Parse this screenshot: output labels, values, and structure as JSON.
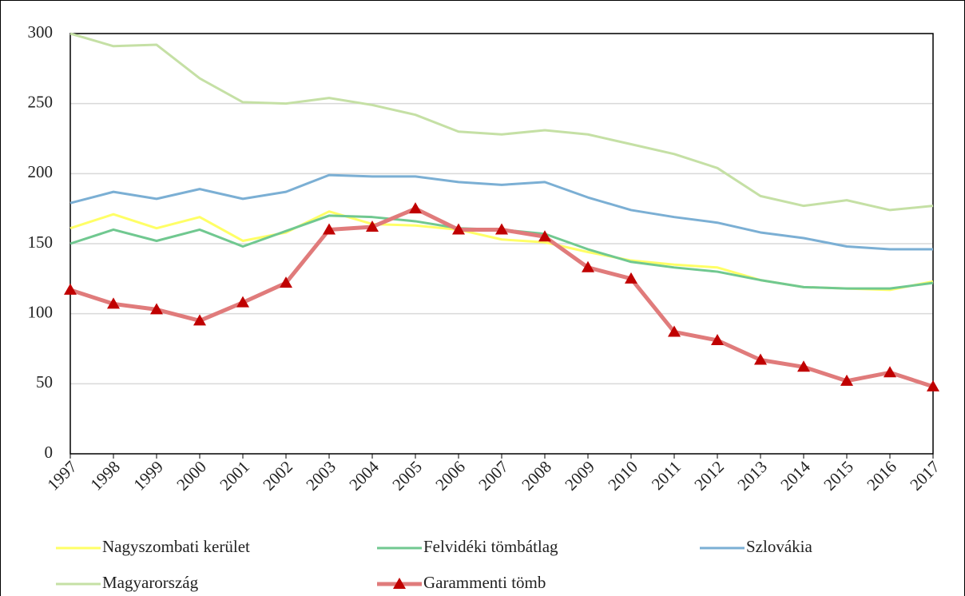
{
  "chart_data": {
    "type": "line",
    "categories": [
      "1997",
      "1998",
      "1999",
      "2000",
      "2001",
      "2002",
      "2003",
      "2004",
      "2005",
      "2006",
      "2007",
      "2008",
      "2009",
      "2010",
      "2011",
      "2012",
      "2013",
      "2014",
      "2015",
      "2016",
      "2017"
    ],
    "series": [
      {
        "name": "Nagyszombati kerület",
        "color": "#ffff66",
        "values": [
          161,
          171,
          161,
          169,
          152,
          158,
          173,
          164,
          163,
          160,
          153,
          151,
          144,
          138,
          135,
          133,
          124,
          119,
          118,
          117,
          123
        ]
      },
      {
        "name": "Felvidéki tömbátlag",
        "color": "#70c890",
        "values": [
          150,
          160,
          152,
          160,
          148,
          159,
          170,
          169,
          166,
          161,
          160,
          157,
          146,
          137,
          133,
          130,
          124,
          119,
          118,
          118,
          122
        ]
      },
      {
        "name": "Szlovákia",
        "color": "#7bafd4",
        "values": [
          179,
          187,
          182,
          189,
          182,
          187,
          199,
          198,
          198,
          194,
          192,
          194,
          183,
          174,
          169,
          165,
          158,
          154,
          148,
          146,
          146
        ]
      },
      {
        "name": "Magyarország",
        "color": "#c5e0a5",
        "values": [
          300,
          291,
          292,
          268,
          251,
          250,
          254,
          249,
          242,
          230,
          228,
          231,
          228,
          221,
          214,
          204,
          184,
          177,
          181,
          174,
          177
        ]
      },
      {
        "name": "Garammenti tömb",
        "color": "#e07b7b",
        "marker": "triangle",
        "marker_color": "#c00000",
        "values": [
          117,
          107,
          103,
          95,
          108,
          122,
          160,
          162,
          175,
          160,
          160,
          155,
          133,
          125,
          87,
          81,
          67,
          62,
          52,
          58,
          48
        ]
      }
    ],
    "ylim": [
      0,
      300
    ],
    "yticks": [
      0,
      50,
      100,
      150,
      200,
      250,
      300
    ],
    "grid": true,
    "legend": "bottom"
  }
}
